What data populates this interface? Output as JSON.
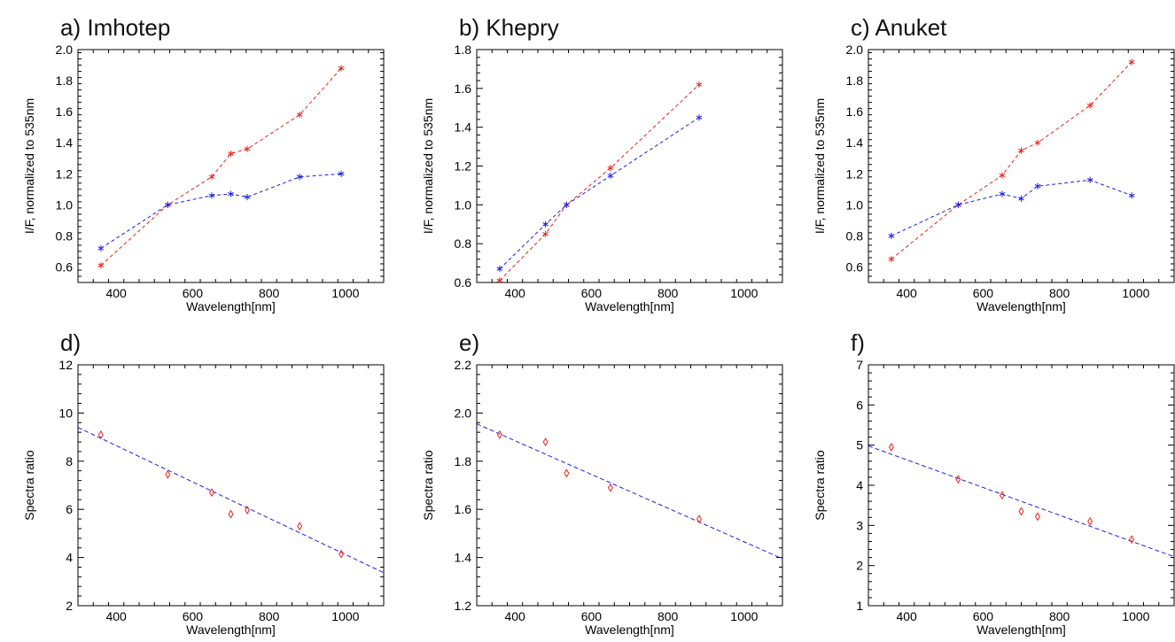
{
  "chart_data": [
    {
      "type": "line",
      "title": "a) Imhotep",
      "xlabel": "Wavelength[nm]",
      "ylabel": "I/F, normalized to 535nm",
      "xlim": [
        300,
        1100
      ],
      "ylim": [
        0.5,
        2.0
      ],
      "xticks": [
        400,
        600,
        800,
        1000
      ],
      "yticks": [
        0.6,
        0.8,
        1.0,
        1.2,
        1.4,
        1.6,
        1.8,
        2.0
      ],
      "ytick_labels": [
        "0.6",
        "0.8",
        "1.0",
        "1.2",
        "1.4",
        "1.6",
        "1.8",
        "2.0"
      ],
      "series": [
        {
          "color": "#e8231c",
          "marker": "star",
          "dash": true,
          "x": [
            360,
            535,
            650,
            700,
            743,
            880,
            989
          ],
          "y": [
            0.61,
            1.0,
            1.18,
            1.33,
            1.36,
            1.58,
            1.88
          ]
        },
        {
          "color": "#1f1fe6",
          "marker": "star",
          "dash": true,
          "x": [
            360,
            535,
            650,
            700,
            743,
            880,
            989
          ],
          "y": [
            0.72,
            1.0,
            1.06,
            1.07,
            1.05,
            1.18,
            1.2
          ]
        }
      ]
    },
    {
      "type": "line",
      "title": "b) Khepry",
      "xlabel": "Wavelength[nm]",
      "ylabel": "I/F, normalized to 535nm",
      "xlim": [
        300,
        1100
      ],
      "ylim": [
        0.6,
        1.8
      ],
      "xticks": [
        400,
        600,
        800,
        1000
      ],
      "yticks": [
        0.6,
        0.8,
        1.0,
        1.2,
        1.4,
        1.6,
        1.8
      ],
      "ytick_labels": [
        "0.6",
        "0.8",
        "1.0",
        "1.2",
        "1.4",
        "1.6",
        "1.8"
      ],
      "series": [
        {
          "color": "#e8231c",
          "marker": "star",
          "dash": true,
          "x": [
            360,
            480,
            535,
            650,
            882
          ],
          "y": [
            0.61,
            0.85,
            1.0,
            1.19,
            1.62
          ]
        },
        {
          "color": "#1f1fe6",
          "marker": "star",
          "dash": true,
          "x": [
            360,
            480,
            535,
            650,
            882
          ],
          "y": [
            0.67,
            0.9,
            1.0,
            1.15,
            1.45
          ]
        }
      ]
    },
    {
      "type": "line",
      "title": "c) Anuket",
      "xlabel": "Wavelength[nm]",
      "ylabel": "I/F, normalized to 535nm",
      "xlim": [
        300,
        1100
      ],
      "ylim": [
        0.5,
        2.0
      ],
      "xticks": [
        400,
        600,
        800,
        1000
      ],
      "yticks": [
        0.6,
        0.8,
        1.0,
        1.2,
        1.4,
        1.6,
        1.8,
        2.0
      ],
      "ytick_labels": [
        "0.6",
        "0.8",
        "1.0",
        "1.2",
        "1.4",
        "1.6",
        "1.8",
        "2.0"
      ],
      "series": [
        {
          "color": "#e8231c",
          "marker": "star",
          "dash": true,
          "x": [
            360,
            535,
            650,
            700,
            743,
            880,
            989
          ],
          "y": [
            0.65,
            1.0,
            1.19,
            1.35,
            1.4,
            1.64,
            1.92
          ]
        },
        {
          "color": "#1f1fe6",
          "marker": "star",
          "dash": true,
          "x": [
            360,
            535,
            650,
            700,
            743,
            880,
            989
          ],
          "y": [
            0.8,
            1.0,
            1.07,
            1.04,
            1.12,
            1.16,
            1.06
          ]
        }
      ]
    },
    {
      "type": "scatter",
      "title": "d)",
      "xlabel": "Wavelength[nm]",
      "ylabel": "Spectra ratio",
      "xlim": [
        300,
        1100
      ],
      "ylim": [
        2,
        12
      ],
      "xticks": [
        400,
        600,
        800,
        1000
      ],
      "yticks": [
        2,
        4,
        6,
        8,
        10,
        12
      ],
      "ytick_labels": [
        "2",
        "4",
        "6",
        "8",
        "10",
        "12"
      ],
      "points": {
        "color": "#e8231c",
        "marker": "diamond",
        "x": [
          360,
          535,
          650,
          700,
          743,
          880,
          989
        ],
        "y": [
          9.1,
          7.45,
          6.7,
          5.8,
          5.97,
          5.3,
          4.15
        ]
      },
      "fit": {
        "color": "#1f1fe6",
        "x": [
          300,
          1100
        ],
        "y": [
          9.4,
          3.37
        ]
      }
    },
    {
      "type": "scatter",
      "title": "e)",
      "xlabel": "Wavelength[nm]",
      "ylabel": "Spectra ratio",
      "xlim": [
        300,
        1100
      ],
      "ylim": [
        1.2,
        2.2
      ],
      "xticks": [
        400,
        600,
        800,
        1000
      ],
      "yticks": [
        1.2,
        1.4,
        1.6,
        1.8,
        2.0,
        2.2
      ],
      "ytick_labels": [
        "1.2",
        "1.4",
        "1.6",
        "1.8",
        "2.0",
        "2.2"
      ],
      "points": {
        "color": "#e8231c",
        "marker": "diamond",
        "x": [
          360,
          480,
          535,
          650,
          882
        ],
        "y": [
          1.91,
          1.88,
          1.75,
          1.69,
          1.56
        ]
      },
      "fit": {
        "color": "#1f1fe6",
        "x": [
          300,
          1100
        ],
        "y": [
          1.955,
          1.395
        ]
      }
    },
    {
      "type": "scatter",
      "title": "f)",
      "xlabel": "Wavelength[nm]",
      "ylabel": "Spectra ratio",
      "xlim": [
        300,
        1100
      ],
      "ylim": [
        1,
        7
      ],
      "xticks": [
        400,
        600,
        800,
        1000
      ],
      "yticks": [
        1,
        2,
        3,
        4,
        5,
        6,
        7
      ],
      "ytick_labels": [
        "1",
        "2",
        "3",
        "4",
        "5",
        "6",
        "7"
      ],
      "points": {
        "color": "#e8231c",
        "marker": "diamond",
        "x": [
          360,
          535,
          650,
          700,
          743,
          880,
          989
        ],
        "y": [
          4.95,
          4.15,
          3.75,
          3.35,
          3.22,
          3.1,
          2.65
        ]
      },
      "fit": {
        "color": "#1f1fe6",
        "x": [
          300,
          1100
        ],
        "y": [
          4.98,
          2.22
        ]
      }
    }
  ]
}
